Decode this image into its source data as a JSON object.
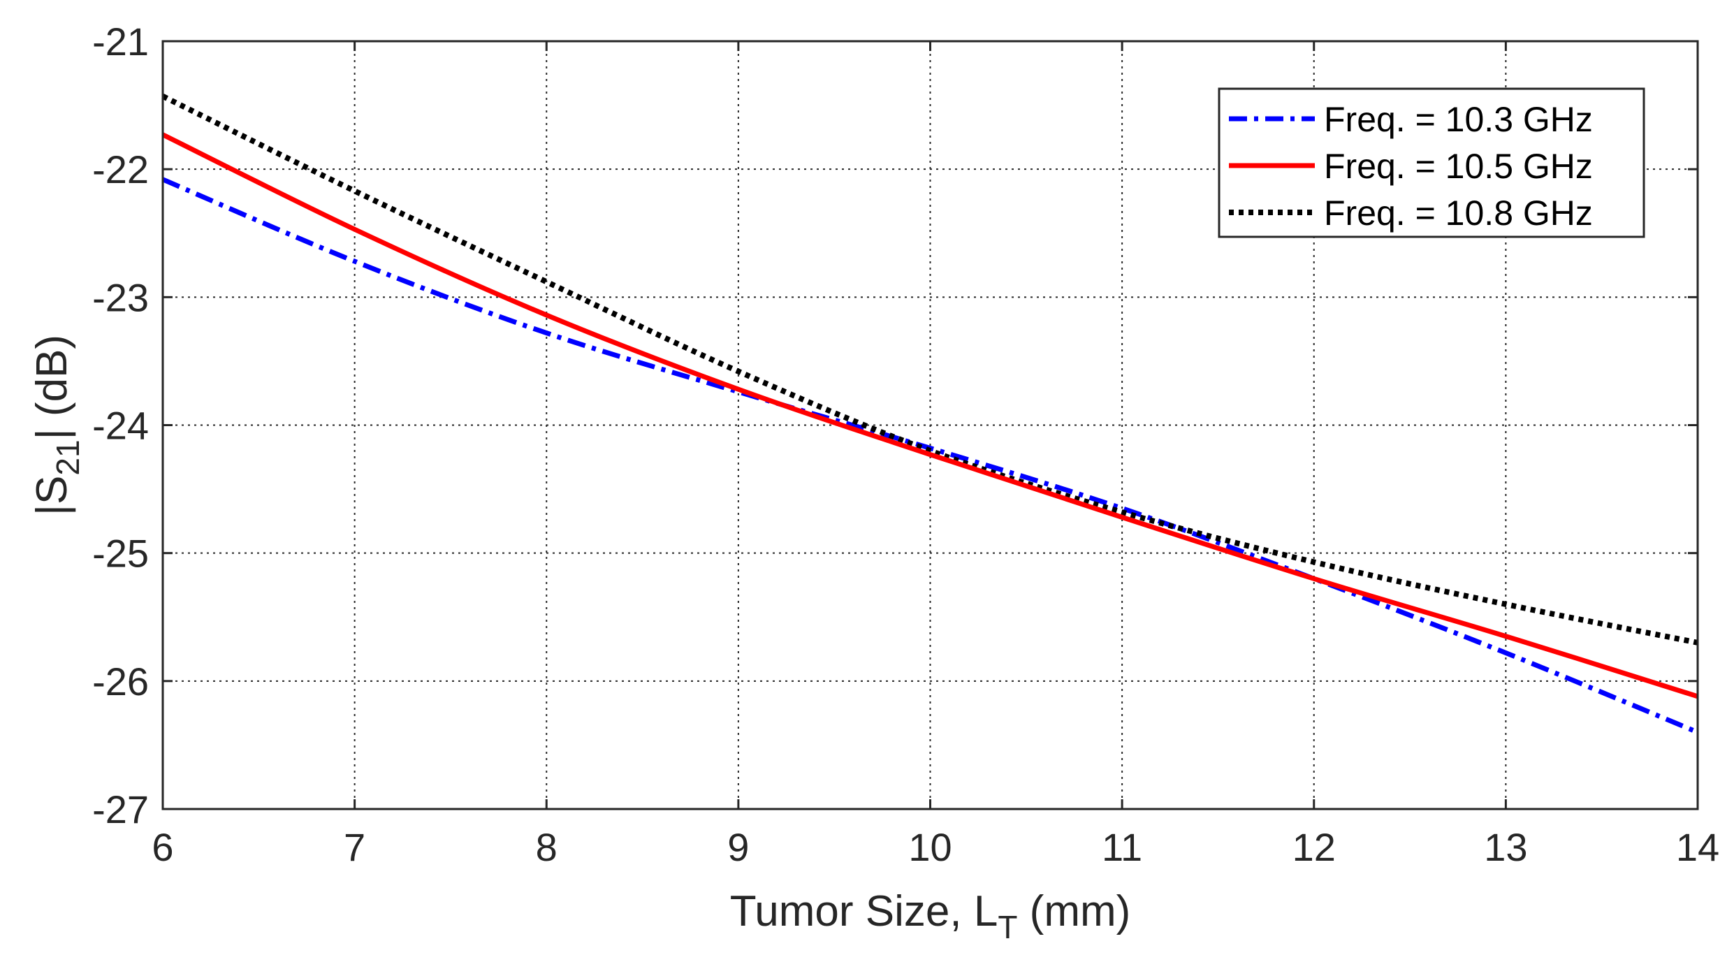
{
  "chart_data": {
    "type": "line",
    "title": "",
    "xlabel": {
      "main": "Tumor Size, L",
      "sub": "T",
      "unit": " (mm)"
    },
    "ylabel": {
      "main": "|S",
      "sub": "21",
      "unit": "| (dB)"
    },
    "xlim": [
      6,
      14
    ],
    "ylim": [
      -27,
      -21
    ],
    "xticks": [
      6,
      7,
      8,
      9,
      10,
      11,
      12,
      13,
      14
    ],
    "yticks": [
      -21,
      -22,
      -23,
      -24,
      -25,
      -26,
      -27
    ],
    "xtick_labels": [
      "6",
      "7",
      "8",
      "9",
      "10",
      "11",
      "12",
      "13",
      "14"
    ],
    "ytick_labels": [
      "-21",
      "-22",
      "-23",
      "-24",
      "-25",
      "-26",
      "-27"
    ],
    "grid": true,
    "legend_position": "top-right",
    "x": [
      6,
      7,
      8,
      9,
      10,
      11,
      12,
      13,
      14
    ],
    "series": [
      {
        "name": "Freq. = 10.3 GHz",
        "color": "#0000ff",
        "style": "dashdot",
        "values": [
          -22.08,
          -22.72,
          -23.28,
          -23.74,
          -24.18,
          -24.65,
          -25.2,
          -25.78,
          -26.4
        ]
      },
      {
        "name": "Freq. = 10.5 GHz",
        "color": "#ff0000",
        "style": "solid",
        "values": [
          -21.73,
          -22.47,
          -23.14,
          -23.72,
          -24.23,
          -24.72,
          -25.2,
          -25.65,
          -26.12
        ]
      },
      {
        "name": "Freq. = 10.8 GHz",
        "color": "#000000",
        "style": "dotted",
        "values": [
          -21.43,
          -22.17,
          -22.88,
          -23.58,
          -24.2,
          -24.68,
          -25.07,
          -25.4,
          -25.7
        ]
      }
    ]
  }
}
